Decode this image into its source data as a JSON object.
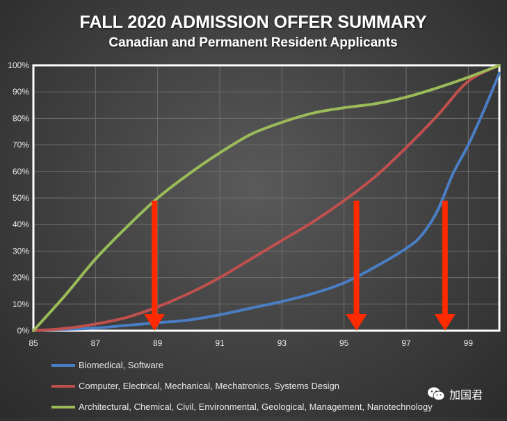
{
  "chart_data": {
    "type": "line",
    "title": "FALL 2020 ADMISSION OFFER SUMMARY",
    "subtitle": "Canadian and Permanent Resident Applicants",
    "xlim": [
      85,
      100
    ],
    "ylim": [
      0,
      100
    ],
    "x_ticks": [
      85,
      87,
      89,
      91,
      93,
      95,
      97,
      99
    ],
    "y_ticks": [
      0,
      10,
      20,
      30,
      40,
      50,
      60,
      70,
      80,
      90,
      100
    ],
    "y_tick_labels": [
      "0%",
      "10%",
      "20%",
      "30%",
      "40%",
      "50%",
      "60%",
      "70%",
      "80%",
      "90%",
      "100%"
    ],
    "grid": true,
    "legend_position": "bottom",
    "series": [
      {
        "name": "Biomedical, Software",
        "color": "#4a7ec4",
        "x": [
          85,
          86,
          87,
          88,
          89,
          90,
          91,
          92,
          93,
          94,
          95,
          96,
          97,
          97.5,
          98,
          98.5,
          99,
          99.5,
          100
        ],
        "y": [
          0,
          0.5,
          1,
          2,
          3,
          4,
          6,
          8.5,
          11,
          14,
          18,
          24,
          31,
          36,
          45,
          59,
          70,
          83,
          97
        ]
      },
      {
        "name": "Computer, Electrical, Mechanical, Mechatronics, Systems Design",
        "color": "#c0504d",
        "x": [
          85,
          86,
          87,
          88,
          89,
          90,
          91,
          92,
          93,
          94,
          95,
          96,
          97,
          98,
          99,
          100
        ],
        "y": [
          0,
          0.8,
          2.5,
          5,
          9,
          14,
          20,
          27,
          34,
          41,
          49,
          58,
          69,
          81,
          94,
          100
        ]
      },
      {
        "name": "Architectural, Chemical, Civil, Environmental, Geological, Management, Nanotechnology",
        "color": "#9bbb59",
        "x": [
          85,
          86,
          87,
          88,
          89,
          90,
          91,
          92,
          93,
          94,
          95,
          96,
          97,
          98,
          99,
          100
        ],
        "y": [
          0,
          13,
          27,
          39,
          50,
          59,
          67,
          74,
          78.5,
          82,
          84,
          85.5,
          88,
          91.5,
          95.5,
          100
        ]
      }
    ],
    "annotations": {
      "arrows": [
        {
          "x": 88.9,
          "y_from": 49,
          "y_to": 0
        },
        {
          "x": 95.4,
          "y_from": 49,
          "y_to": 0
        },
        {
          "x": 98.25,
          "y_from": 49,
          "y_to": 0
        }
      ],
      "arrow_color": "#ff2a00"
    }
  },
  "watermark": {
    "icon": "wechat-icon",
    "text": "加国君"
  }
}
